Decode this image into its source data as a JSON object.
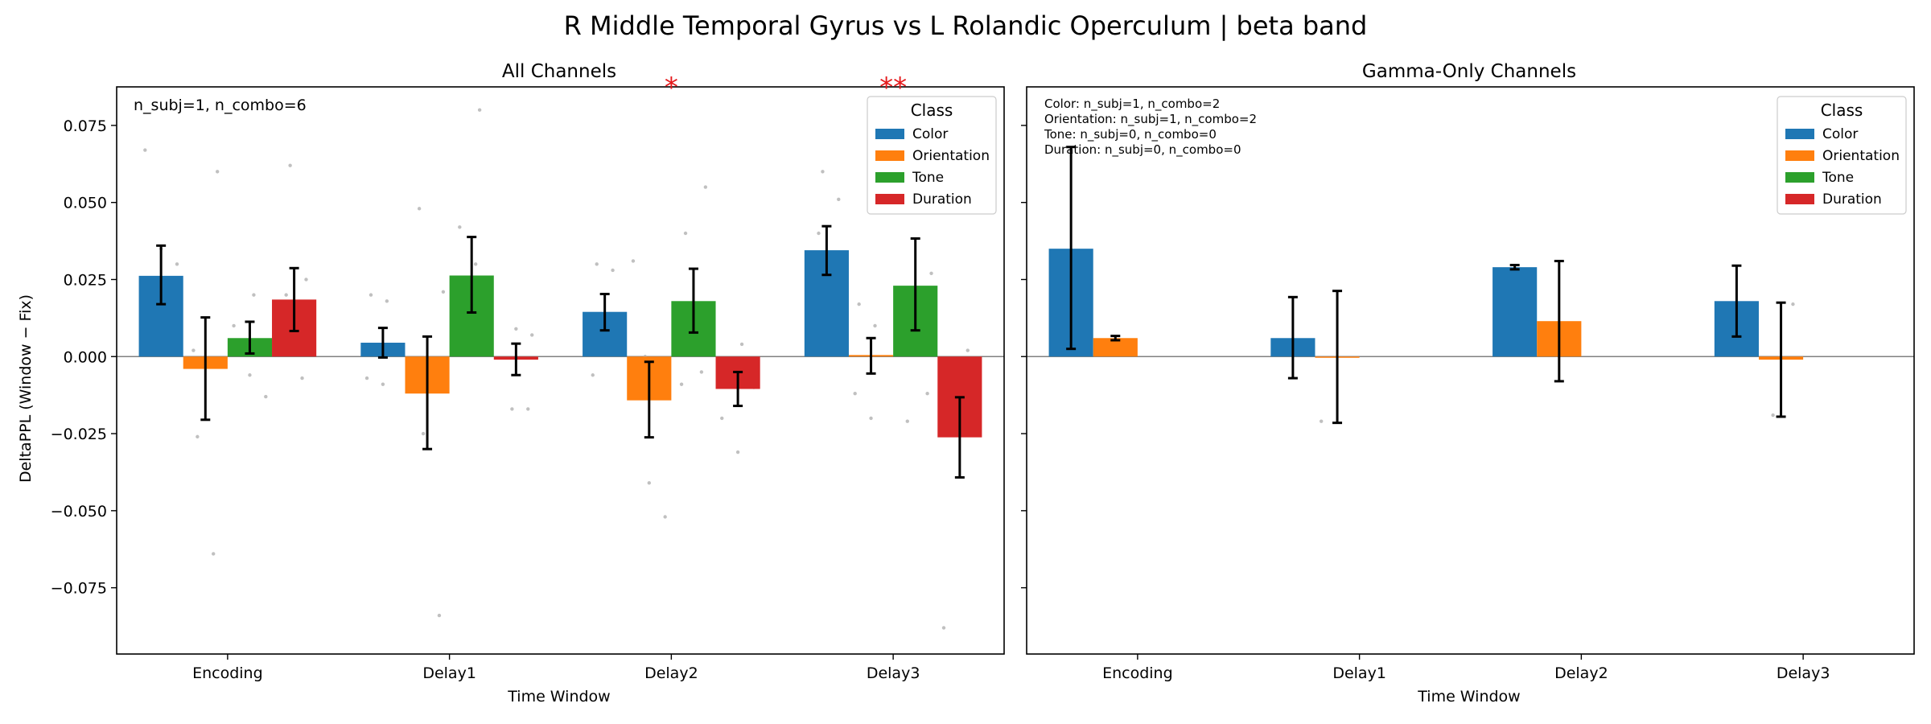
{
  "figure": {
    "title": "R Middle Temporal Gyrus vs L Rolandic Operculum  |  beta band",
    "ylabel": "DeltaPPL (Window − Fix)",
    "legend_title": "Class"
  },
  "colors": {
    "Color": "#1f77b4",
    "Orientation": "#ff7f0e",
    "Tone": "#2ca02c",
    "Duration": "#d62728"
  },
  "chart_data": [
    {
      "type": "bar",
      "title": "All Channels",
      "xlabel": "Time Window",
      "ylabel": "DeltaPPL (Window − Fix)",
      "categories": [
        "Encoding",
        "Delay1",
        "Delay2",
        "Delay3"
      ],
      "ylim": [
        -0.0965,
        0.0875
      ],
      "yticks": [
        -0.075,
        -0.05,
        -0.025,
        0.0,
        0.025,
        0.05,
        0.075
      ],
      "ytick_labels": [
        "−0.075",
        "−0.050",
        "−0.025",
        "0.000",
        "0.025",
        "0.050",
        "0.075"
      ],
      "legend_position": "top-right",
      "annotation": "n_subj=1, n_combo=6",
      "significance": [
        {
          "category": "Delay2",
          "label": "*"
        },
        {
          "category": "Delay3",
          "label": "**"
        }
      ],
      "series": [
        {
          "name": "Color",
          "values": [
            0.0262,
            0.0045,
            0.0145,
            0.0345
          ],
          "err_low": [
            0.017,
            -0.0003,
            0.0085,
            0.0265
          ],
          "err_high": [
            0.036,
            0.0093,
            0.0203,
            0.0423
          ]
        },
        {
          "name": "Orientation",
          "values": [
            -0.004,
            -0.012,
            -0.0142,
            0.0005
          ],
          "err_low": [
            -0.0205,
            -0.03,
            -0.0262,
            -0.0055
          ],
          "err_high": [
            0.0127,
            0.0065,
            -0.0017,
            0.006
          ]
        },
        {
          "name": "Tone",
          "values": [
            0.006,
            0.0263,
            0.018,
            0.023
          ],
          "err_low": [
            0.001,
            0.0143,
            0.0078,
            0.0085
          ],
          "err_high": [
            0.0113,
            0.0388,
            0.0285,
            0.0383
          ]
        },
        {
          "name": "Duration",
          "values": [
            0.0185,
            -0.001,
            -0.0105,
            -0.0262
          ],
          "err_low": [
            0.0083,
            -0.006,
            -0.016,
            -0.0392
          ],
          "err_high": [
            0.0287,
            0.0042,
            -0.005,
            -0.0132
          ]
        }
      ],
      "points": [
        {
          "category": "Encoding",
          "series": "Color",
          "y": [
            0.067,
            0.035,
            0.03,
            0.02
          ]
        },
        {
          "category": "Encoding",
          "series": "Orientation",
          "y": [
            0.06,
            -0.026,
            -0.064,
            0.002
          ]
        },
        {
          "category": "Encoding",
          "series": "Tone",
          "y": [
            0.02,
            0.01,
            -0.006,
            -0.013
          ]
        },
        {
          "category": "Encoding",
          "series": "Duration",
          "y": [
            0.062,
            0.025,
            0.02,
            -0.007
          ]
        },
        {
          "category": "Delay1",
          "series": "Color",
          "y": [
            0.02,
            0.018,
            -0.007,
            -0.009
          ]
        },
        {
          "category": "Delay1",
          "series": "Orientation",
          "y": [
            0.021,
            -0.025,
            -0.084,
            0.048
          ]
        },
        {
          "category": "Delay1",
          "series": "Tone",
          "y": [
            0.08,
            0.042,
            0.03,
            0.018
          ]
        },
        {
          "category": "Delay1",
          "series": "Duration",
          "y": [
            0.009,
            0.007,
            -0.017,
            -0.017
          ]
        },
        {
          "category": "Delay2",
          "series": "Color",
          "y": [
            0.03,
            0.028,
            -0.006,
            0.01
          ]
        },
        {
          "category": "Delay2",
          "series": "Orientation",
          "y": [
            0.031,
            -0.041,
            -0.052,
            0.0
          ]
        },
        {
          "category": "Delay2",
          "series": "Tone",
          "y": [
            0.055,
            0.04,
            -0.005,
            -0.009
          ]
        },
        {
          "category": "Delay2",
          "series": "Duration",
          "y": [
            0.004,
            -0.02,
            -0.031,
            -0.01
          ]
        },
        {
          "category": "Delay3",
          "series": "Color",
          "y": [
            0.06,
            0.051,
            0.04,
            0.006
          ]
        },
        {
          "category": "Delay3",
          "series": "Orientation",
          "y": [
            0.017,
            0.01,
            -0.012,
            -0.02
          ]
        },
        {
          "category": "Delay3",
          "series": "Tone",
          "y": [
            0.027,
            0.006,
            -0.012,
            -0.021
          ]
        },
        {
          "category": "Delay3",
          "series": "Duration",
          "y": [
            0.002,
            -0.014,
            -0.022,
            -0.088
          ]
        }
      ]
    },
    {
      "type": "bar",
      "title": "Gamma-Only Channels",
      "xlabel": "Time Window",
      "categories": [
        "Encoding",
        "Delay1",
        "Delay2",
        "Delay3"
      ],
      "ylim": [
        -0.0965,
        0.0875
      ],
      "legend_position": "top-right",
      "annotation_lines": [
        "Color: n_subj=1, n_combo=2",
        "Orientation: n_subj=1, n_combo=2",
        "Tone: n_subj=0, n_combo=0",
        "Duration: n_subj=0, n_combo=0"
      ],
      "series": [
        {
          "name": "Color",
          "values": [
            0.035,
            0.006,
            0.029,
            0.018
          ],
          "err_low": [
            0.0025,
            -0.007,
            0.0283,
            0.0065
          ],
          "err_high": [
            0.068,
            0.0193,
            0.0297,
            0.0295
          ]
        },
        {
          "name": "Orientation",
          "values": [
            0.006,
            0.0,
            0.0115,
            -0.001
          ],
          "err_low": [
            0.0053,
            -0.0215,
            -0.008,
            -0.0195
          ],
          "err_high": [
            0.0067,
            0.0213,
            0.031,
            0.0175
          ]
        }
      ],
      "points": [
        {
          "category": "Delay1",
          "series": "Orientation",
          "y": [
            -0.021
          ]
        },
        {
          "category": "Delay3",
          "series": "Orientation",
          "y": [
            0.017,
            -0.019
          ]
        }
      ]
    }
  ]
}
